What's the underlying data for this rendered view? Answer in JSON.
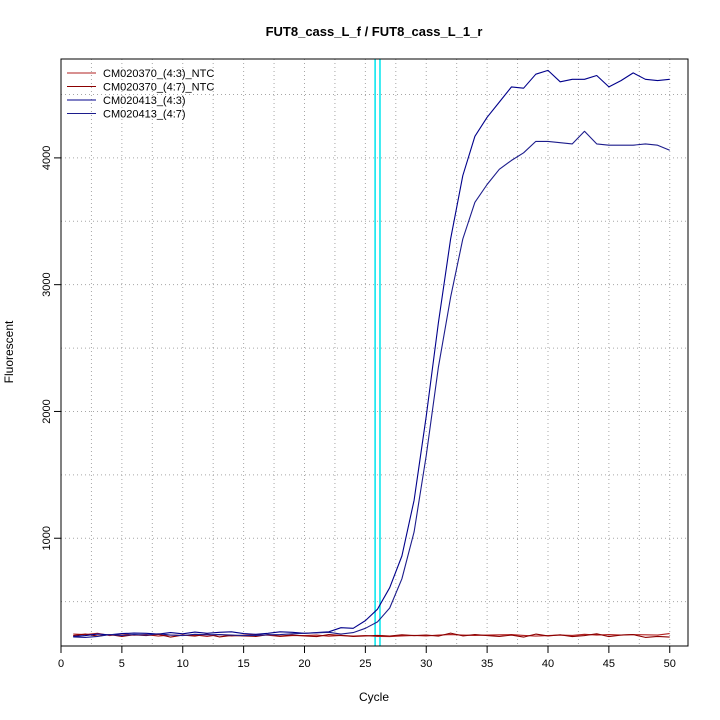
{
  "chart_data": {
    "type": "line",
    "title": "FUT8_cass_L_f / FUT8_cass_L_1_r",
    "xlabel": "Cycle",
    "ylabel": "Fluorescent",
    "xlim": [
      0,
      51.5
    ],
    "ylim": [
      150,
      4780
    ],
    "xticks": [
      0,
      5,
      10,
      15,
      20,
      25,
      30,
      35,
      40,
      45,
      50
    ],
    "yticks": [
      1000,
      2000,
      3000,
      4000
    ],
    "grid": "dotted, at every 2.5 cycles and every 500 fluorescence units",
    "legend_position": "top-left",
    "threshold_lines": {
      "color": "#00e5ee",
      "x": [
        25.8,
        26.2
      ]
    },
    "series": [
      {
        "name": "CM020370_(4:3)_NTC",
        "color": "#b22222",
        "x": [
          1,
          2,
          3,
          4,
          5,
          6,
          7,
          8,
          9,
          10,
          11,
          12,
          13,
          14,
          15,
          16,
          17,
          18,
          19,
          20,
          21,
          22,
          23,
          24,
          25,
          26,
          27,
          28,
          29,
          30,
          31,
          32,
          33,
          34,
          35,
          36,
          37,
          38,
          39,
          40,
          41,
          42,
          43,
          44,
          45,
          46,
          47,
          48,
          49,
          50
        ],
        "values": [
          245,
          240,
          250,
          232,
          246,
          235,
          240,
          228,
          237,
          234,
          238,
          226,
          240,
          230,
          235,
          238,
          235,
          226,
          232,
          232,
          236,
          227,
          234,
          228,
          232,
          226,
          224,
          230,
          234,
          230,
          236,
          240,
          236,
          234,
          236,
          238,
          240,
          234,
          228,
          232,
          236,
          234,
          242,
          236,
          240,
          236,
          240,
          238,
          236,
          248
        ]
      },
      {
        "name": "CM020370_(4:7)_NTC",
        "color": "#8b0000",
        "x": [
          1,
          2,
          3,
          4,
          5,
          6,
          7,
          8,
          9,
          10,
          11,
          12,
          13,
          14,
          15,
          16,
          17,
          18,
          19,
          20,
          21,
          22,
          23,
          24,
          25,
          26,
          27,
          28,
          29,
          30,
          31,
          32,
          33,
          34,
          35,
          36,
          37,
          38,
          39,
          40,
          41,
          42,
          43,
          44,
          45,
          46,
          47,
          48,
          49,
          50
        ],
        "values": [
          232,
          244,
          228,
          240,
          226,
          238,
          232,
          242,
          220,
          236,
          228,
          244,
          222,
          234,
          230,
          226,
          240,
          228,
          236,
          230,
          224,
          240,
          234,
          226,
          230,
          234,
          228,
          238,
          232,
          236,
          228,
          252,
          230,
          240,
          232,
          226,
          236,
          220,
          244,
          230,
          238,
          224,
          232,
          246,
          224,
          236,
          240,
          218,
          226,
          220
        ]
      },
      {
        "name": "CM020413_(4:3)",
        "color": "#00008b",
        "x": [
          1,
          2,
          3,
          4,
          5,
          6,
          7,
          8,
          9,
          10,
          11,
          12,
          13,
          14,
          15,
          16,
          17,
          18,
          19,
          20,
          21,
          22,
          23,
          24,
          25,
          26,
          27,
          28,
          29,
          30,
          31,
          32,
          33,
          34,
          35,
          36,
          37,
          38,
          39,
          40,
          41,
          42,
          43,
          44,
          45,
          46,
          47,
          48,
          49,
          50
        ],
        "values": [
          226,
          232,
          244,
          238,
          248,
          252,
          250,
          244,
          256,
          246,
          260,
          250,
          258,
          262,
          248,
          242,
          250,
          262,
          258,
          250,
          256,
          262,
          294,
          290,
          350,
          440,
          610,
          860,
          1300,
          1960,
          2700,
          3360,
          3860,
          4170,
          4320,
          4440,
          4560,
          4550,
          4660,
          4690,
          4600,
          4620,
          4620,
          4650,
          4560,
          4610,
          4670,
          4620,
          4610,
          4620
        ]
      },
      {
        "name": "CM020413_(4:7)",
        "color": "#1c1c8c",
        "x": [
          1,
          2,
          3,
          4,
          5,
          6,
          7,
          8,
          9,
          10,
          11,
          12,
          13,
          14,
          15,
          16,
          17,
          18,
          19,
          20,
          21,
          22,
          23,
          24,
          25,
          26,
          27,
          28,
          29,
          30,
          31,
          32,
          33,
          34,
          35,
          36,
          37,
          38,
          39,
          40,
          41,
          42,
          43,
          44,
          45,
          46,
          47,
          48,
          49,
          50
        ],
        "values": [
          222,
          218,
          226,
          240,
          234,
          240,
          236,
          246,
          236,
          232,
          242,
          238,
          240,
          236,
          232,
          234,
          238,
          240,
          246,
          250,
          254,
          258,
          244,
          256,
          290,
          340,
          450,
          680,
          1050,
          1650,
          2350,
          2900,
          3360,
          3650,
          3790,
          3910,
          3980,
          4040,
          4130,
          4130,
          4120,
          4110,
          4210,
          4110,
          4100,
          4100,
          4100,
          4110,
          4100,
          4060
        ]
      }
    ]
  }
}
